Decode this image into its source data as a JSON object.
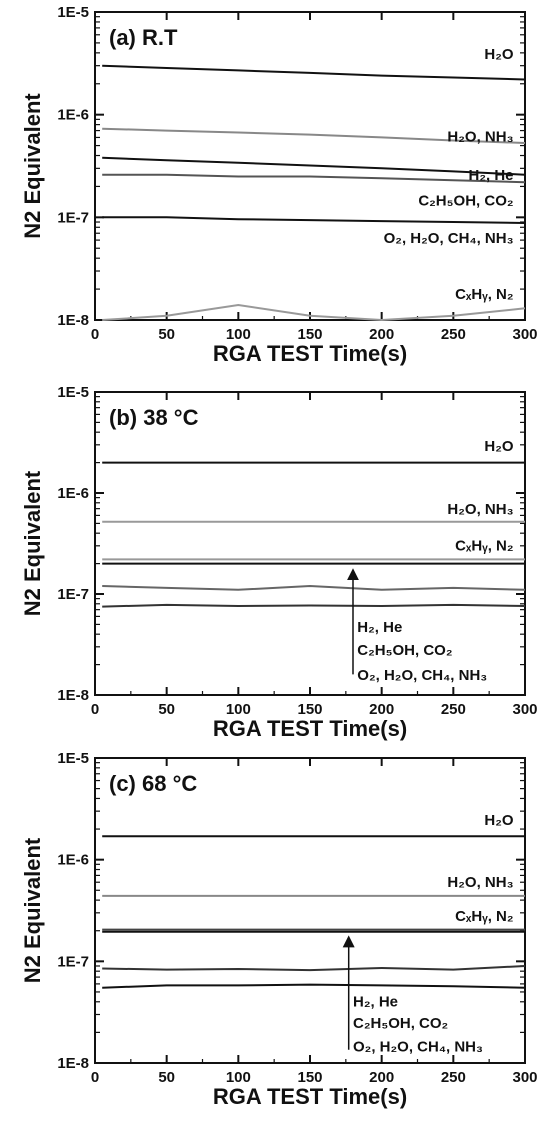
{
  "chart_data": [
    {
      "type": "line",
      "title": "(a) R.T",
      "xlabel": "RGA TEST Time(s)",
      "ylabel": "N2 Equivalent",
      "xlim": [
        0,
        300
      ],
      "ylim": [
        1e-08,
        1e-05
      ],
      "yscale": "log",
      "xticks": [
        "0",
        "50",
        "100",
        "150",
        "200",
        "250",
        "300"
      ],
      "yticks": [
        "1E-8",
        "1E-7",
        "1E-6",
        "1E-5"
      ],
      "x": [
        5,
        50,
        100,
        150,
        200,
        250,
        300
      ],
      "series": [
        {
          "name": "H2O",
          "color": "#111111",
          "values": [
            3e-06,
            2.85e-06,
            2.7e-06,
            2.55e-06,
            2.4e-06,
            2.3e-06,
            2.2e-06
          ]
        },
        {
          "name": "H2O, NH3",
          "color": "#888888",
          "values": [
            7.3e-07,
            7e-07,
            6.7e-07,
            6.4e-07,
            6e-07,
            5.6e-07,
            5.3e-07
          ]
        },
        {
          "name": "H2, He",
          "color": "#111111",
          "values": [
            3.8e-07,
            3.6e-07,
            3.4e-07,
            3.2e-07,
            3e-07,
            2.8e-07,
            2.6e-07
          ]
        },
        {
          "name": "C2H5OH, CO2",
          "color": "#555555",
          "values": [
            2.6e-07,
            2.6e-07,
            2.5e-07,
            2.5e-07,
            2.4e-07,
            2.3e-07,
            2.2e-07
          ]
        },
        {
          "name": "O2, H2O, CH4, NH3",
          "color": "#111111",
          "values": [
            1e-07,
            1e-07,
            9.6e-08,
            9.4e-08,
            9.2e-08,
            9e-08,
            8.8e-08
          ]
        },
        {
          "name": "CxHy, N2",
          "color": "#999999",
          "values": [
            1e-08,
            1.1e-08,
            1.4e-08,
            1.1e-08,
            1e-08,
            1.1e-08,
            1.3e-08
          ]
        }
      ],
      "labels": [
        {
          "text": "H₂O",
          "x": 292,
          "y": 3.5e-06
        },
        {
          "text": "H₂O, NH₃",
          "x": 292,
          "y": 5.5e-07
        },
        {
          "text": "H₂, He",
          "x": 292,
          "y": 2.3e-07
        },
        {
          "text": "C₂H₅OH, CO₂",
          "x": 292,
          "y": 1.3e-07
        },
        {
          "text": "O₂, H₂O, CH₄, NH₃",
          "x": 292,
          "y": 5.6e-08
        },
        {
          "text": "CₓHᵧ, N₂",
          "x": 292,
          "y": 1.6e-08
        }
      ]
    },
    {
      "type": "line",
      "title": "(b) 38 °C",
      "xlabel": "RGA TEST Time(s)",
      "ylabel": "N2 Equivalent",
      "xlim": [
        0,
        300
      ],
      "ylim": [
        1e-08,
        1e-05
      ],
      "yscale": "log",
      "xticks": [
        "0",
        "50",
        "100",
        "150",
        "200",
        "250",
        "300"
      ],
      "yticks": [
        "1E-8",
        "1E-7",
        "1E-6",
        "1E-5"
      ],
      "x": [
        5,
        50,
        100,
        150,
        200,
        250,
        300
      ],
      "series": [
        {
          "name": "H2O",
          "color": "#111111",
          "values": [
            2e-06,
            2e-06,
            2e-06,
            2e-06,
            2e-06,
            2e-06,
            2e-06
          ]
        },
        {
          "name": "H2O, NH3",
          "color": "#999999",
          "values": [
            5.2e-07,
            5.2e-07,
            5.2e-07,
            5.2e-07,
            5.2e-07,
            5.2e-07,
            5.2e-07
          ]
        },
        {
          "name": "CxHy, N2",
          "color": "#999999",
          "values": [
            2.2e-07,
            2.2e-07,
            2.2e-07,
            2.2e-07,
            2.2e-07,
            2.2e-07,
            2.2e-07
          ]
        },
        {
          "name": "H2, He",
          "color": "#111111",
          "values": [
            2e-07,
            2e-07,
            2e-07,
            2e-07,
            2e-07,
            2e-07,
            2e-07
          ]
        },
        {
          "name": "C2H5OH, CO2",
          "color": "#666666",
          "values": [
            1.2e-07,
            1.15e-07,
            1.1e-07,
            1.2e-07,
            1.1e-07,
            1.15e-07,
            1.1e-07
          ]
        },
        {
          "name": "O2, H2O, CH4, NH3",
          "color": "#333333",
          "values": [
            7.5e-08,
            7.8e-08,
            7.6e-08,
            7.7e-08,
            7.6e-08,
            7.8e-08,
            7.6e-08
          ]
        }
      ],
      "labels": [
        {
          "text": "H₂O",
          "x": 292,
          "y": 2.6e-06
        },
        {
          "text": "H₂O, NH₃",
          "x": 292,
          "y": 6.2e-07
        },
        {
          "text": "CₓHᵧ, N₂",
          "x": 292,
          "y": 2.7e-07
        },
        {
          "text": "H₂, He",
          "x": 183,
          "y": 4.2e-08
        },
        {
          "text": "C₂H₅OH, CO₂",
          "x": 183,
          "y": 2.5e-08
        },
        {
          "text": "O₂, H₂O, CH₄, NH₃",
          "x": 183,
          "y": 1.4e-08
        }
      ],
      "arrow": {
        "x": 180,
        "from": 1.6e-08,
        "to": 1.8e-07
      }
    },
    {
      "type": "line",
      "title": "(c) 68 °C",
      "xlabel": "RGA TEST Time(s)",
      "ylabel": "N2 Equivalent",
      "xlim": [
        0,
        300
      ],
      "ylim": [
        1e-08,
        1e-05
      ],
      "yscale": "log",
      "xticks": [
        "0",
        "50",
        "100",
        "150",
        "200",
        "250",
        "300"
      ],
      "yticks": [
        "1E-8",
        "1E-7",
        "1E-6",
        "1E-5"
      ],
      "x": [
        5,
        50,
        100,
        150,
        200,
        250,
        300
      ],
      "series": [
        {
          "name": "H2O",
          "color": "#111111",
          "values": [
            1.7e-06,
            1.7e-06,
            1.7e-06,
            1.7e-06,
            1.7e-06,
            1.7e-06,
            1.7e-06
          ]
        },
        {
          "name": "H2O, NH3",
          "color": "#888888",
          "values": [
            4.4e-07,
            4.4e-07,
            4.4e-07,
            4.4e-07,
            4.4e-07,
            4.4e-07,
            4.4e-07
          ]
        },
        {
          "name": "CxHy, N2",
          "color": "#444444",
          "values": [
            2.05e-07,
            2.05e-07,
            2.05e-07,
            2.05e-07,
            2.05e-07,
            2.05e-07,
            2.05e-07
          ]
        },
        {
          "name": "H2, He",
          "color": "#111111",
          "values": [
            1.95e-07,
            1.95e-07,
            1.95e-07,
            1.95e-07,
            1.95e-07,
            1.95e-07,
            1.95e-07
          ]
        },
        {
          "name": "C2H5OH, CO2",
          "color": "#333333",
          "values": [
            8.5e-08,
            8.3e-08,
            8.4e-08,
            8.2e-08,
            8.6e-08,
            8.3e-08,
            9e-08
          ]
        },
        {
          "name": "O2, H2O, CH4, NH3",
          "color": "#111111",
          "values": [
            5.5e-08,
            5.8e-08,
            5.8e-08,
            5.9e-08,
            5.8e-08,
            5.7e-08,
            5.5e-08
          ]
        }
      ],
      "labels": [
        {
          "text": "H₂O",
          "x": 292,
          "y": 2.2e-06
        },
        {
          "text": "H₂O, NH₃",
          "x": 292,
          "y": 5.4e-07
        },
        {
          "text": "CₓHᵧ, N₂",
          "x": 292,
          "y": 2.5e-07
        },
        {
          "text": "H₂, He",
          "x": 180,
          "y": 3.6e-08
        },
        {
          "text": "C₂H₅OH, CO₂",
          "x": 180,
          "y": 2.2e-08
        },
        {
          "text": "O₂, H₂O, CH₄, NH₃",
          "x": 180,
          "y": 1.3e-08
        }
      ],
      "arrow": {
        "x": 177,
        "from": 1.35e-08,
        "to": 1.8e-07
      }
    }
  ]
}
